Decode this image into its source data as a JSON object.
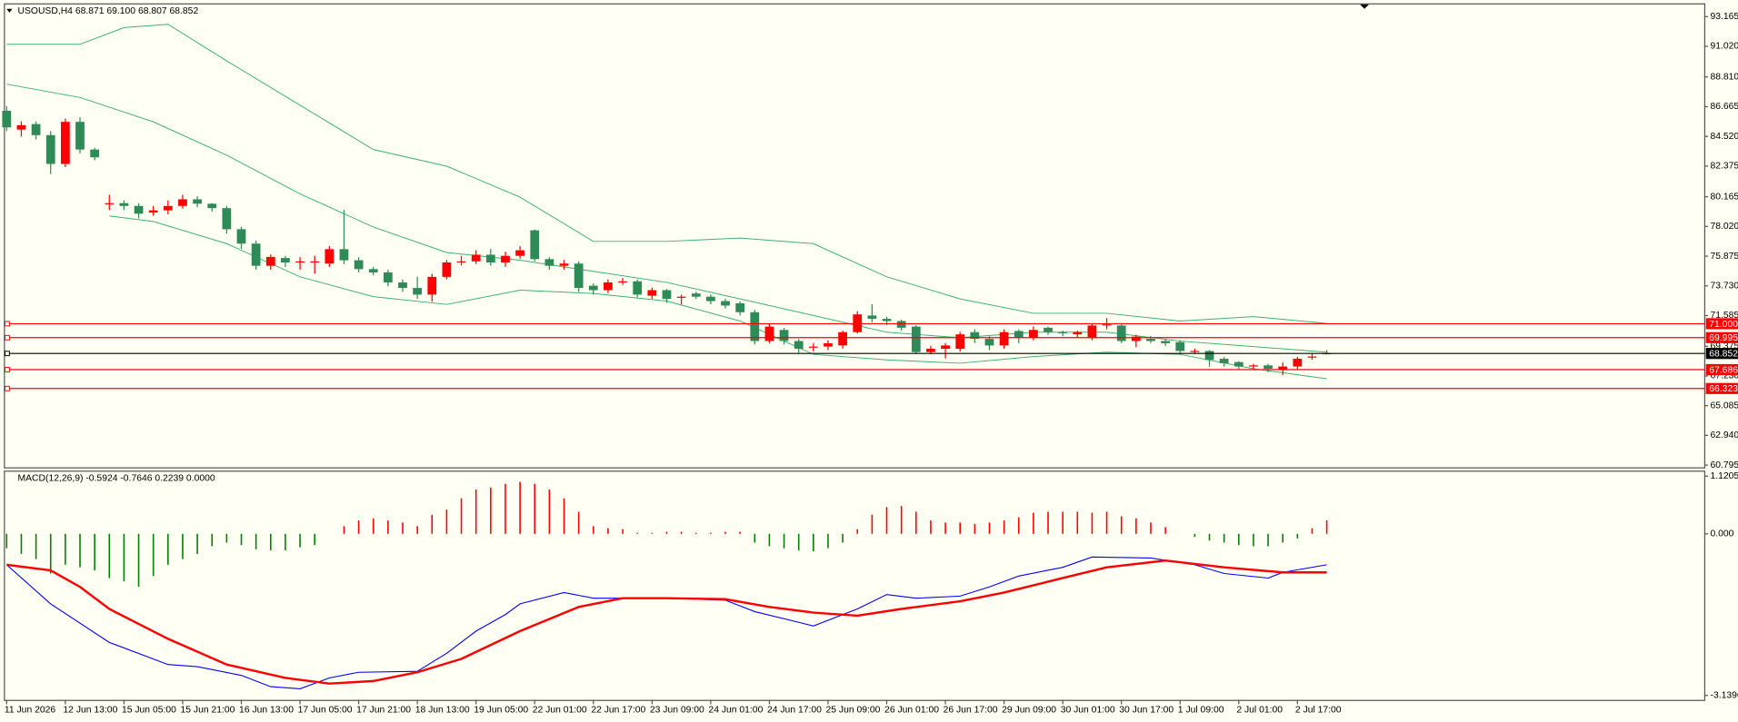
{
  "chart_data": [
    {
      "type": "candlestick",
      "title": "USOUSD,H4  68.871 69.100 68.807 68.852",
      "categories": [
        "11 Jun 2026",
        null,
        null,
        null,
        "12 Jun 13:00",
        null,
        null,
        null,
        "15 Jun 05:00",
        null,
        null,
        null,
        "15 Jun 21:00",
        null,
        null,
        null,
        "16 Jun 13:00",
        null,
        null,
        null,
        "17 Jun 05:00",
        null,
        null,
        null,
        "17 Jun 21:00",
        null,
        null,
        null,
        "18 Jun 13:00",
        null,
        null,
        null,
        "19 Jun 05:00",
        null,
        null,
        null,
        "22 Jun 01:00",
        null,
        null,
        null,
        "22 Jun 17:00",
        null,
        null,
        null,
        "23 Jun 09:00",
        null,
        null,
        null,
        "24 Jun 01:00",
        null,
        null,
        null,
        "24 Jun 17:00",
        null,
        null,
        null,
        "25 Jun 09:00",
        null,
        null,
        null,
        "26 Jun 01:00",
        null,
        null,
        null,
        "26 Jun 17:00",
        null,
        null,
        null,
        "29 Jun 09:00",
        null,
        null,
        null,
        "30 Jun 01:00",
        null,
        null,
        null,
        "30 Jun 17:00",
        null,
        null,
        null,
        "1 Jul 09:00",
        null,
        null,
        null,
        "2 Jul 01:00",
        null,
        null,
        null,
        "2 Jul 17:00",
        null,
        null
      ],
      "open": [
        86.37,
        85.01,
        85.41,
        84.61,
        82.53,
        85.57,
        83.57,
        79.62,
        79.7,
        79.5,
        79.02,
        79.18,
        79.5,
        79.98,
        79.66,
        79.34,
        77.82,
        76.78,
        75.18,
        75.74,
        75.42,
        75.42,
        75.34,
        76.38,
        75.58,
        74.94,
        74.7,
        73.98,
        73.58,
        73.1,
        74.38,
        75.42,
        75.5,
        75.98,
        75.42,
        75.9,
        77.74,
        75.66,
        75.18,
        75.34,
        73.74,
        73.42,
        73.98,
        74.06,
        73.02,
        73.42,
        72.87,
        73.18,
        72.95,
        72.63,
        72.47,
        71.83,
        69.75,
        70.55,
        69.75,
        69.27,
        69.35,
        69.43,
        70.39,
        71.59,
        71.35,
        71.19,
        70.79,
        68.95,
        69.19,
        69.19,
        70.39,
        69.91,
        69.43,
        70.47,
        69.99,
        70.71,
        70.39,
        70.23,
        69.99,
        70.87,
        70.87,
        69.75,
        69.91,
        69.75,
        69.67,
        68.95,
        69.03,
        68.47,
        68.23,
        67.91,
        67.99,
        67.67,
        67.91,
        68.55,
        68.871
      ],
      "high": [
        86.7,
        85.6,
        85.6,
        84.9,
        85.8,
        85.9,
        83.7,
        80.3,
        79.9,
        79.7,
        79.5,
        79.9,
        80.3,
        80.2,
        79.7,
        79.5,
        78.0,
        77.0,
        76.0,
        75.9,
        75.8,
        75.9,
        76.6,
        79.2,
        75.8,
        75.1,
        74.9,
        74.2,
        74.4,
        74.6,
        75.6,
        75.9,
        76.3,
        76.4,
        76.2,
        76.6,
        77.8,
        75.8,
        75.6,
        75.5,
        73.9,
        74.2,
        74.3,
        74.2,
        73.6,
        73.5,
        73.1,
        73.3,
        73.1,
        72.8,
        72.6,
        72.0,
        71.0,
        70.7,
        69.9,
        69.6,
        69.8,
        70.5,
        71.9,
        72.4,
        71.5,
        71.3,
        70.9,
        69.4,
        69.6,
        70.4,
        70.6,
        70.1,
        70.6,
        70.6,
        70.8,
        70.8,
        70.5,
        70.5,
        71.0,
        71.4,
        71.0,
        70.2,
        70.1,
        69.9,
        69.8,
        69.2,
        69.1,
        68.6,
        68.3,
        68.1,
        68.1,
        68.2,
        68.6,
        68.9,
        69.1
      ],
      "low": [
        84.9,
        84.5,
        84.3,
        81.8,
        82.3,
        83.3,
        82.8,
        79.2,
        79.2,
        78.6,
        78.8,
        78.9,
        79.3,
        79.4,
        79.1,
        77.5,
        76.4,
        74.9,
        74.9,
        75.1,
        74.9,
        74.6,
        75.1,
        75.3,
        74.7,
        74.5,
        73.7,
        73.3,
        72.8,
        72.6,
        74.2,
        75.2,
        75.3,
        75.2,
        75.1,
        75.7,
        75.5,
        74.9,
        74.9,
        73.3,
        73.1,
        73.2,
        73.8,
        72.9,
        72.8,
        72.5,
        72.4,
        72.8,
        72.4,
        72.1,
        71.6,
        69.5,
        69.6,
        69.5,
        68.9,
        69.0,
        69.1,
        69.2,
        70.3,
        71.1,
        70.9,
        70.5,
        68.8,
        68.8,
        68.5,
        69.0,
        69.6,
        69.1,
        69.2,
        69.6,
        69.8,
        70.2,
        70.1,
        70.0,
        69.8,
        70.6,
        69.6,
        69.3,
        69.6,
        69.4,
        68.8,
        68.8,
        67.9,
        67.9,
        67.7,
        67.7,
        67.5,
        67.3,
        67.7,
        68.4,
        68.807
      ],
      "close": [
        85.17,
        85.33,
        84.61,
        82.53,
        85.57,
        83.57,
        83.01,
        79.7,
        79.5,
        78.94,
        79.18,
        79.5,
        79.98,
        79.66,
        79.34,
        77.82,
        76.78,
        75.18,
        75.82,
        75.42,
        75.5,
        75.5,
        76.38,
        75.58,
        74.94,
        74.7,
        73.98,
        73.58,
        73.1,
        74.38,
        75.42,
        75.5,
        75.98,
        75.42,
        75.9,
        76.3,
        75.66,
        75.18,
        75.34,
        73.58,
        73.42,
        73.98,
        74.06,
        73.1,
        73.42,
        72.79,
        72.95,
        72.95,
        72.63,
        72.31,
        71.83,
        69.75,
        70.79,
        69.75,
        69.19,
        69.35,
        69.59,
        70.39,
        71.67,
        71.35,
        71.19,
        70.71,
        68.95,
        69.19,
        69.43,
        70.23,
        69.91,
        69.43,
        70.39,
        69.99,
        70.55,
        70.39,
        70.31,
        70.39,
        70.87,
        70.95,
        69.75,
        70.07,
        69.75,
        69.59,
        69.03,
        69.03,
        68.39,
        68.15,
        67.91,
        67.99,
        67.75,
        67.91,
        68.47,
        68.63,
        68.852
      ],
      "up_color": "#ff0000",
      "down_color": "#2e8b57",
      "bands": [
        {
          "color": "#3cb371",
          "x": [
            0,
            5,
            8,
            11,
            15,
            20,
            25,
            30,
            35,
            40,
            45,
            50,
            55,
            60,
            65,
            70,
            75,
            80,
            85,
            90
          ],
          "values": [
            91.17,
            91.17,
            92.37,
            92.61,
            89.97,
            86.77,
            83.57,
            82.37,
            80.14,
            76.94,
            76.94,
            77.18,
            76.78,
            74.38,
            72.79,
            71.75,
            71.75,
            71.19,
            71.51,
            71.02
          ]
        },
        {
          "color": "#3cb371",
          "x": [
            0,
            5,
            10,
            15,
            20,
            25,
            30,
            35,
            40,
            45,
            50,
            55,
            60,
            65,
            70,
            75,
            80,
            85,
            90
          ],
          "values": [
            88.29,
            87.33,
            85.57,
            83.17,
            80.38,
            77.98,
            76.14,
            75.58,
            74.78,
            73.98,
            72.79,
            71.59,
            70.39,
            69.99,
            70.39,
            70.39,
            69.75,
            69.35,
            68.95
          ]
        },
        {
          "color": "#3cb371",
          "x": [
            7,
            10,
            15,
            20,
            25,
            30,
            35,
            40,
            45,
            50,
            55,
            60,
            65,
            70,
            75,
            80,
            85,
            90
          ],
          "values": [
            78.78,
            78.38,
            76.78,
            74.38,
            72.95,
            72.39,
            73.42,
            73.18,
            72.63,
            71.19,
            68.79,
            68.39,
            68.15,
            68.63,
            68.95,
            68.79,
            67.75,
            67.03
          ]
        }
      ],
      "levels": [
        {
          "value": 71,
          "label": "71.000",
          "color": "#ff0000"
        },
        {
          "value": 69.995,
          "color": "#ff0000"
        },
        {
          "value": 68.852,
          "color": "#000000"
        },
        {
          "value": 67.686,
          "color": "#ff0000"
        },
        {
          "value": 66.323,
          "color": "#ff0000"
        }
      ],
      "ylim": [
        60.795,
        93.165
      ],
      "yticks": [
        60.795,
        {
          "value": 62.94,
          "label": "62.940"
        },
        65.085,
        {
          "value": 67.23,
          "label": "67.230"
        },
        69.375,
        71.585,
        {
          "value": 73.73,
          "label": "73.730"
        },
        75.875,
        {
          "value": 78.02,
          "label": "78.020"
        },
        80.165,
        82.375,
        {
          "value": 84.52,
          "label": "84.520"
        },
        86.665,
        {
          "value": 88.81,
          "label": "88.810"
        },
        {
          "value": 91.02,
          "label": "91.020"
        },
        93.165
      ]
    },
    {
      "type": "macd",
      "title": "MACD(12,26,9) -0.5924 -0.7646 0.2239 0.0000",
      "histogram": [
        -0.28,
        -0.39,
        -0.49,
        -0.77,
        -0.6,
        -0.65,
        -0.71,
        -0.86,
        -0.92,
        -1.03,
        -0.82,
        -0.6,
        -0.49,
        -0.39,
        -0.24,
        -0.17,
        -0.22,
        -0.3,
        -0.32,
        -0.32,
        -0.26,
        -0.22,
        0,
        0.15,
        0.26,
        0.3,
        0.26,
        0.22,
        0.15,
        0.37,
        0.47,
        0.69,
        0.86,
        0.9,
        0.97,
        1.01,
        0.97,
        0.86,
        0.69,
        0.43,
        0.15,
        0.11,
        0.09,
        0.02,
        0.02,
        0.04,
        0.04,
        0.02,
        0.02,
        0.04,
        0.04,
        -0.17,
        -0.24,
        -0.28,
        -0.32,
        -0.34,
        -0.28,
        -0.17,
        0.09,
        0.37,
        0.52,
        0.54,
        0.43,
        0.26,
        0.22,
        0.22,
        0.19,
        0.22,
        0.26,
        0.32,
        0.41,
        0.43,
        0.43,
        0.43,
        0.41,
        0.43,
        0.34,
        0.3,
        0.22,
        0.13,
        0,
        -0.06,
        -0.13,
        -0.17,
        -0.22,
        -0.24,
        -0.24,
        -0.17,
        -0.09,
        0.11,
        0.26
      ],
      "pos_color": "#ff0000",
      "neg_color": "#008000",
      "lines": [
        {
          "color": "#0000ff",
          "x": [
            0,
            3,
            7,
            11,
            13,
            16,
            18,
            20,
            22,
            24,
            28,
            30,
            32,
            34,
            35,
            38,
            40,
            45,
            49,
            51,
            54,
            55,
            58,
            60,
            62,
            65,
            67,
            69,
            72,
            74,
            78,
            81,
            83,
            86,
            87,
            90
          ],
          "values": [
            -0.6,
            -1.36,
            -2.11,
            -2.54,
            -2.58,
            -2.75,
            -2.97,
            -3.01,
            -2.8,
            -2.69,
            -2.67,
            -2.32,
            -1.89,
            -1.57,
            -1.36,
            -1.14,
            -1.25,
            -1.25,
            -1.29,
            -1.51,
            -1.72,
            -1.79,
            -1.46,
            -1.18,
            -1.25,
            -1.21,
            -1.03,
            -0.82,
            -0.65,
            -0.45,
            -0.47,
            -0.6,
            -0.77,
            -0.86,
            -0.75,
            -0.6
          ]
        },
        {
          "color": "#ff0000",
          "x": [
            0,
            3,
            5,
            7,
            11,
            15,
            19,
            22,
            25,
            28,
            31,
            35,
            39,
            42,
            45,
            49,
            52,
            55,
            58,
            61,
            65,
            68,
            72,
            75,
            79,
            83,
            87,
            90
          ],
          "values": [
            -0.6,
            -0.71,
            -1.03,
            -1.46,
            -2.04,
            -2.54,
            -2.8,
            -2.91,
            -2.86,
            -2.69,
            -2.43,
            -1.89,
            -1.42,
            -1.25,
            -1.25,
            -1.27,
            -1.42,
            -1.53,
            -1.59,
            -1.46,
            -1.31,
            -1.14,
            -0.86,
            -0.65,
            -0.52,
            -0.65,
            -0.75,
            -0.75
          ]
        }
      ],
      "ylim": [
        -3.1396,
        1.1205
      ],
      "yticks": [
        -3.1396,
        {
          "value": 0,
          "label": "0.000"
        },
        1.1205
      ]
    }
  ]
}
